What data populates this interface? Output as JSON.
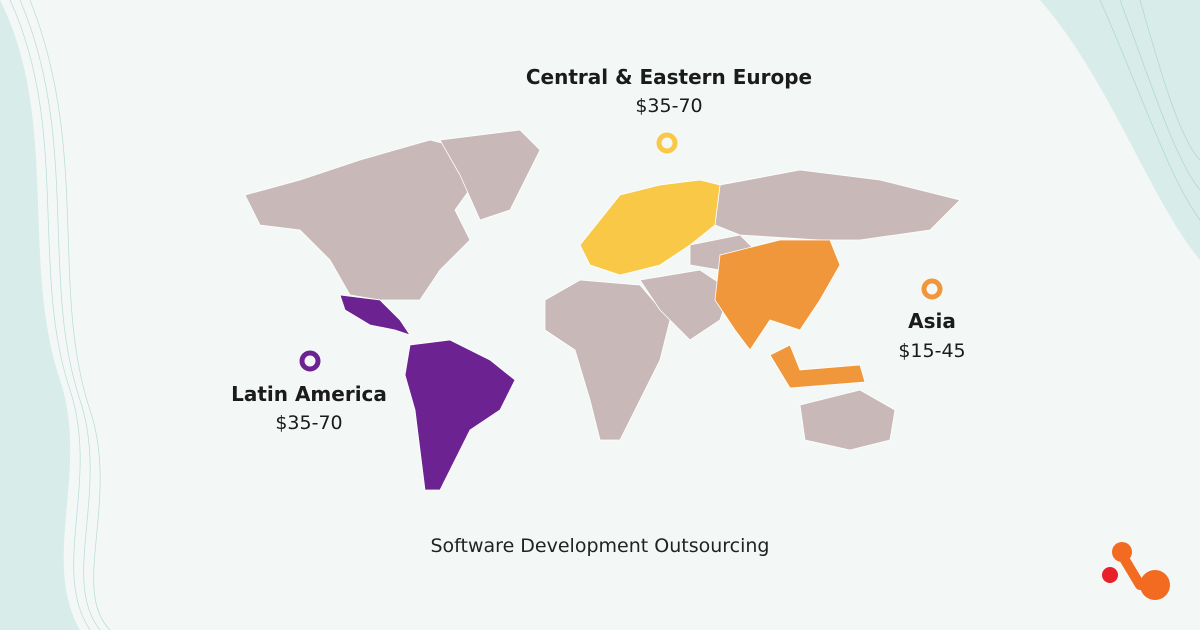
{
  "caption": "Software Development Outsourcing",
  "regions": [
    {
      "name": "Central & Eastern Europe",
      "rate": "$35-70",
      "color": "#f9c846"
    },
    {
      "name": "Asia",
      "rate": "$15-45",
      "color": "#f0973c"
    },
    {
      "name": "Latin America",
      "rate": "$35-70",
      "color": "#6c2391"
    }
  ]
}
